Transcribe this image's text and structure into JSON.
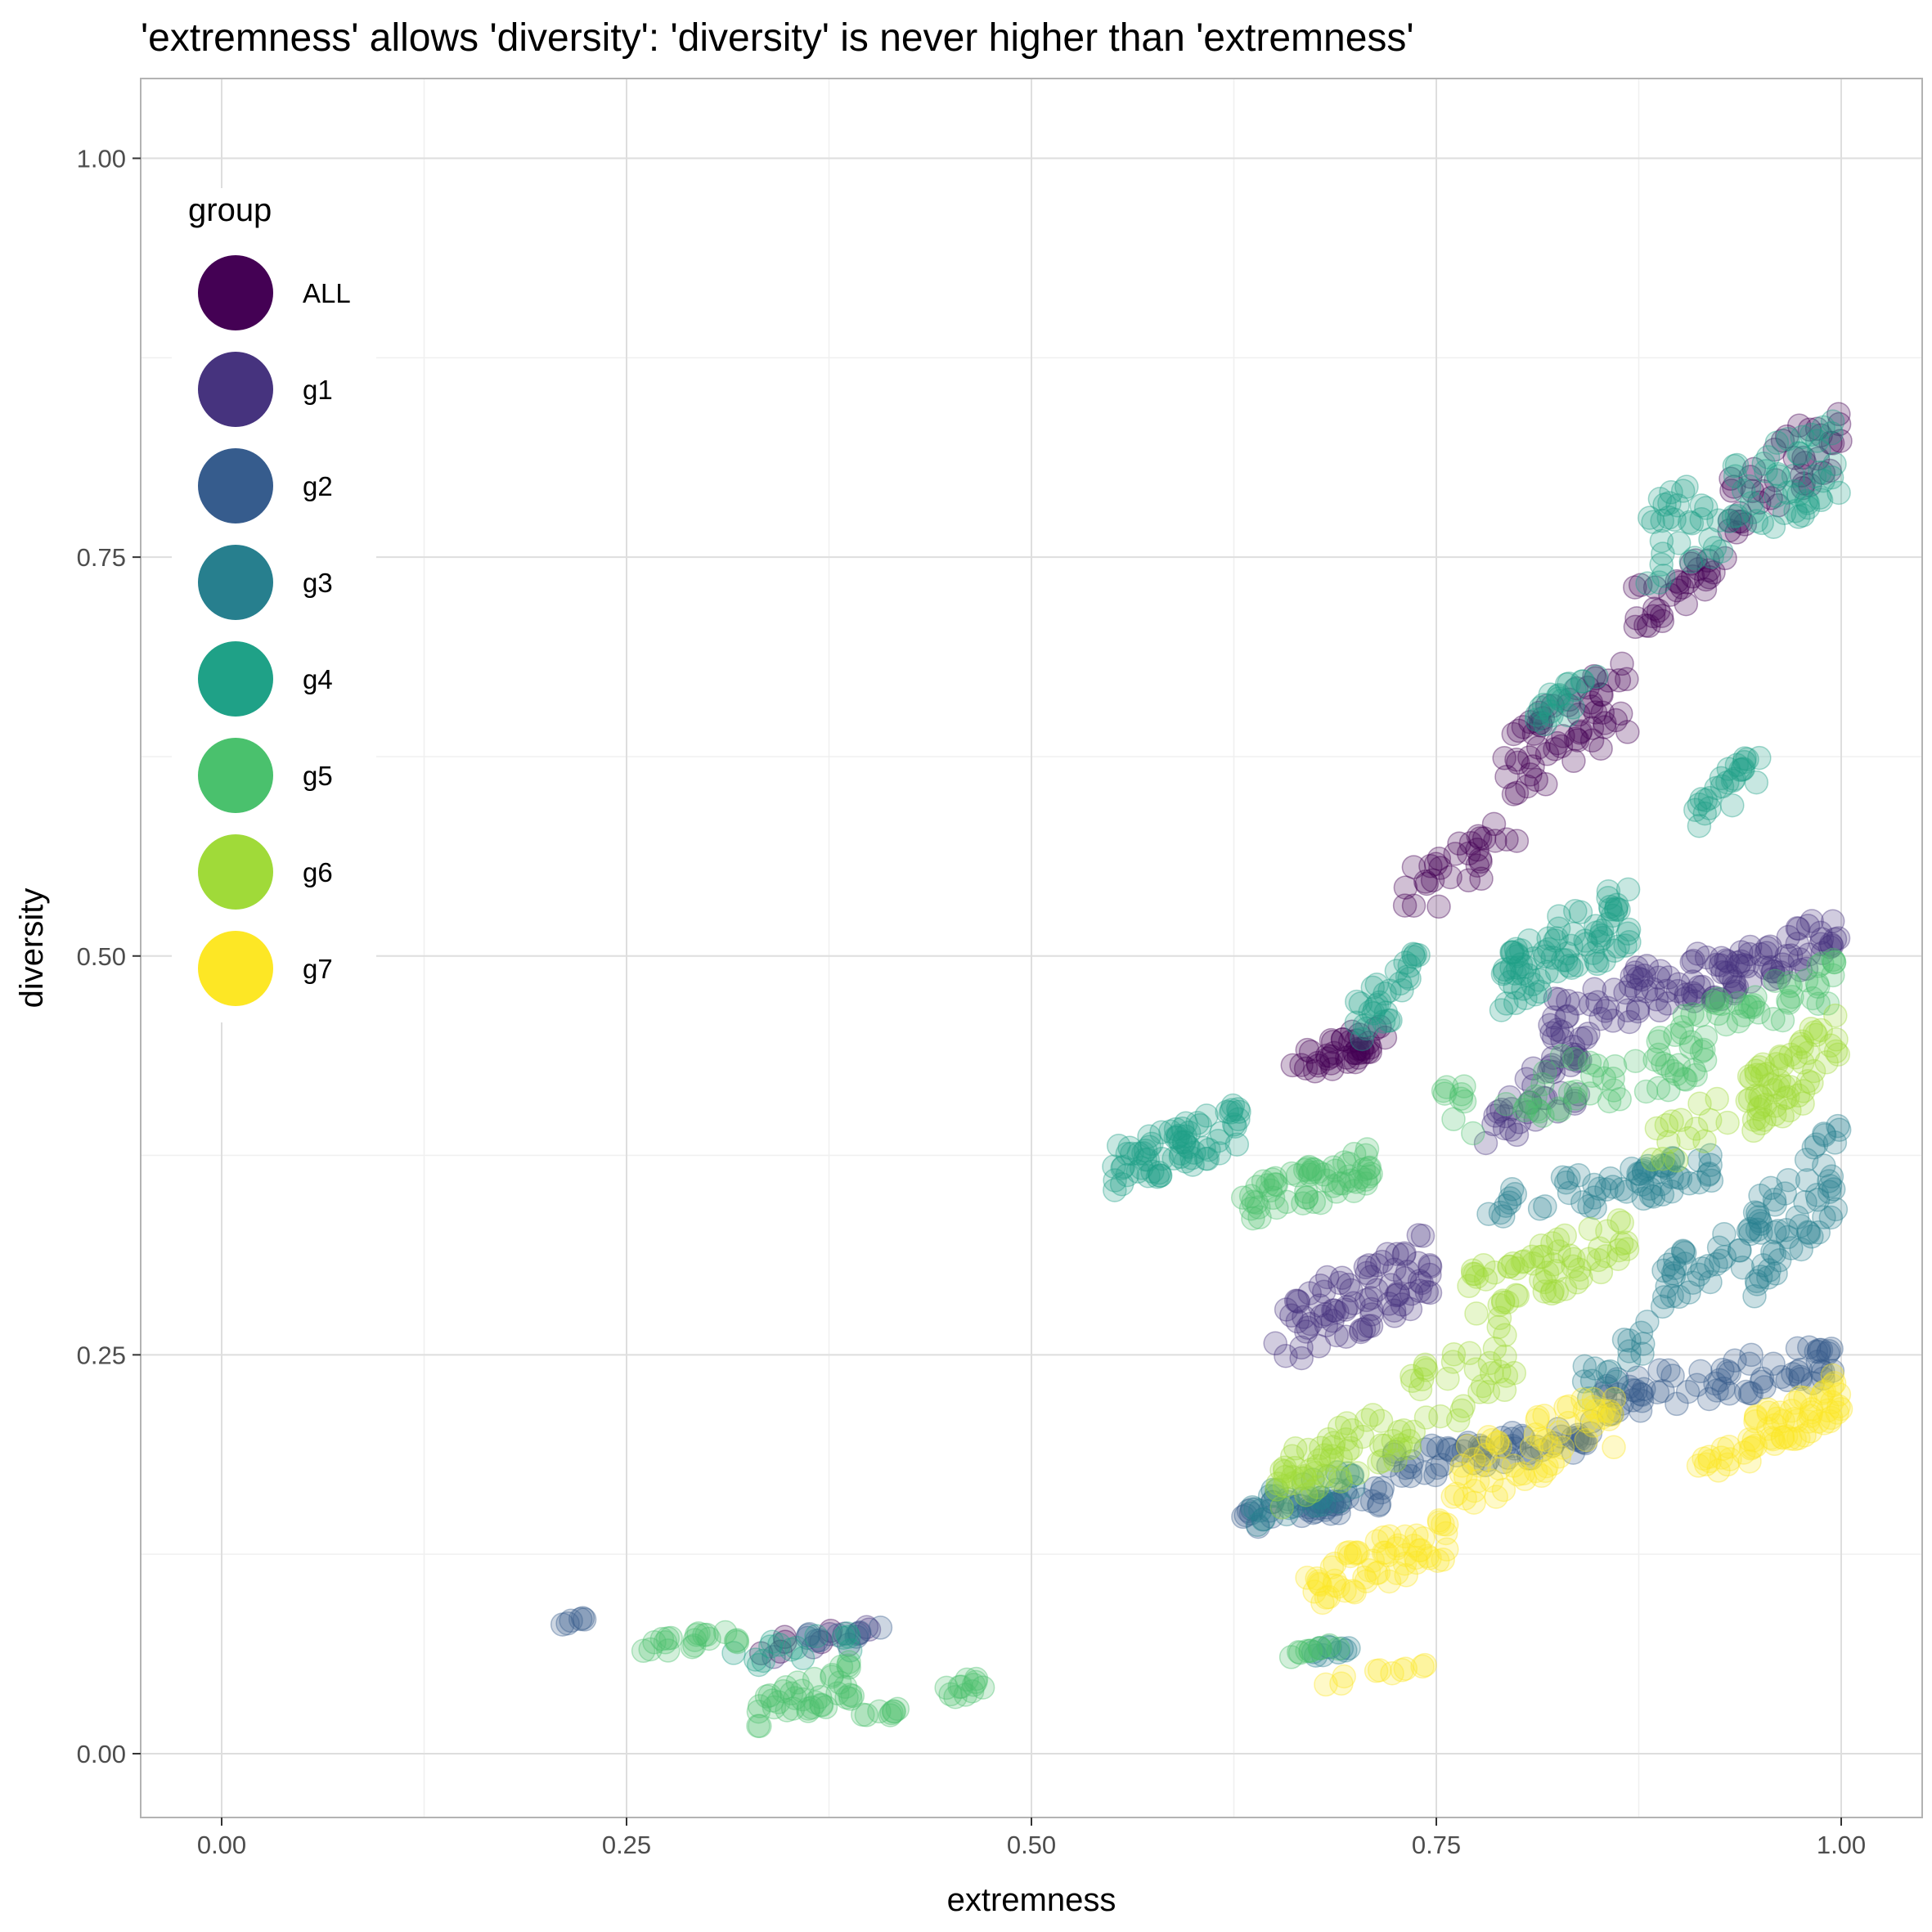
{
  "chart_data": {
    "type": "scatter",
    "title": "'extremness' allows 'diversity': 'diversity' is never higher than 'extremness'",
    "xlabel": "extremness",
    "ylabel": "diversity",
    "xlim": [
      -0.05,
      1.05
    ],
    "ylim": [
      -0.04,
      1.05
    ],
    "x_ticks": [
      "0.00",
      "0.25",
      "0.50",
      "0.75",
      "1.00"
    ],
    "y_ticks": [
      "0.00",
      "0.25",
      "0.50",
      "0.75",
      "1.00"
    ],
    "grid": true,
    "point_opacity": 0.25,
    "legend": {
      "title": "group",
      "position": "top-left-inside"
    },
    "series": [
      {
        "name": "ALL",
        "color": "#440154",
        "clusters": [
          {
            "x0": 0.66,
            "x1": 0.72,
            "y0": 0.42,
            "y1": 0.46,
            "n": 40
          },
          {
            "x0": 0.73,
            "x1": 0.8,
            "y0": 0.52,
            "y1": 0.59,
            "n": 30
          },
          {
            "x0": 0.79,
            "x1": 0.87,
            "y0": 0.59,
            "y1": 0.69,
            "n": 60
          },
          {
            "x0": 0.87,
            "x1": 0.93,
            "y0": 0.7,
            "y1": 0.76,
            "n": 30
          },
          {
            "x0": 0.93,
            "x1": 1.0,
            "y0": 0.76,
            "y1": 0.85,
            "n": 40
          },
          {
            "x0": 0.33,
            "x1": 0.38,
            "y0": 0.06,
            "y1": 0.08,
            "n": 6
          }
        ]
      },
      {
        "name": "g1",
        "color": "#46337e",
        "clusters": [
          {
            "x0": 0.65,
            "x1": 0.75,
            "y0": 0.24,
            "y1": 0.33,
            "n": 80
          },
          {
            "x0": 0.78,
            "x1": 0.84,
            "y0": 0.37,
            "y1": 0.45,
            "n": 40
          },
          {
            "x0": 0.82,
            "x1": 0.92,
            "y0": 0.44,
            "y1": 0.51,
            "n": 60
          },
          {
            "x0": 0.92,
            "x1": 1.0,
            "y0": 0.47,
            "y1": 0.53,
            "n": 60
          },
          {
            "x0": 0.34,
            "x1": 0.4,
            "y0": 0.06,
            "y1": 0.08,
            "n": 8
          }
        ]
      },
      {
        "name": "g2",
        "color": "#365c8d",
        "clusters": [
          {
            "x0": 0.63,
            "x1": 0.72,
            "y0": 0.14,
            "y1": 0.17,
            "n": 40
          },
          {
            "x0": 0.72,
            "x1": 0.85,
            "y0": 0.17,
            "y1": 0.21,
            "n": 60
          },
          {
            "x0": 0.85,
            "x1": 1.0,
            "y0": 0.21,
            "y1": 0.26,
            "n": 70
          },
          {
            "x0": 0.36,
            "x1": 0.41,
            "y0": 0.07,
            "y1": 0.08,
            "n": 10
          },
          {
            "x0": 0.21,
            "x1": 0.24,
            "y0": 0.08,
            "y1": 0.09,
            "n": 6
          }
        ]
      },
      {
        "name": "g3",
        "color": "#277f8e",
        "clusters": [
          {
            "x0": 0.63,
            "x1": 0.7,
            "y0": 0.14,
            "y1": 0.18,
            "n": 30
          },
          {
            "x0": 0.78,
            "x1": 0.92,
            "y0": 0.33,
            "y1": 0.38,
            "n": 60
          },
          {
            "x0": 0.88,
            "x1": 0.94,
            "y0": 0.27,
            "y1": 0.34,
            "n": 30
          },
          {
            "x0": 0.94,
            "x1": 1.0,
            "y0": 0.28,
            "y1": 0.4,
            "n": 60
          },
          {
            "x0": 0.67,
            "x1": 0.7,
            "y0": 0.06,
            "y1": 0.07,
            "n": 10
          },
          {
            "x0": 0.84,
            "x1": 0.88,
            "y0": 0.22,
            "y1": 0.27,
            "n": 15
          }
        ]
      },
      {
        "name": "g4",
        "color": "#1fa187",
        "clusters": [
          {
            "x0": 0.55,
            "x1": 0.63,
            "y0": 0.35,
            "y1": 0.41,
            "n": 70
          },
          {
            "x0": 0.7,
            "x1": 0.74,
            "y0": 0.44,
            "y1": 0.51,
            "n": 30
          },
          {
            "x0": 0.79,
            "x1": 0.87,
            "y0": 0.46,
            "y1": 0.55,
            "n": 80
          },
          {
            "x0": 0.81,
            "x1": 0.85,
            "y0": 0.64,
            "y1": 0.68,
            "n": 20
          },
          {
            "x0": 0.91,
            "x1": 0.95,
            "y0": 0.58,
            "y1": 0.63,
            "n": 25
          },
          {
            "x0": 0.88,
            "x1": 1.0,
            "y0": 0.73,
            "y1": 0.84,
            "n": 80
          },
          {
            "x0": 0.31,
            "x1": 0.39,
            "y0": 0.05,
            "y1": 0.08,
            "n": 15
          }
        ]
      },
      {
        "name": "g5",
        "color": "#4ac16d",
        "clusters": [
          {
            "x0": 0.63,
            "x1": 0.71,
            "y0": 0.33,
            "y1": 0.38,
            "n": 60
          },
          {
            "x0": 0.75,
            "x1": 0.92,
            "y0": 0.38,
            "y1": 0.46,
            "n": 60
          },
          {
            "x0": 0.9,
            "x1": 1.0,
            "y0": 0.44,
            "y1": 0.5,
            "n": 40
          },
          {
            "x0": 0.33,
            "x1": 0.39,
            "y0": 0.01,
            "y1": 0.06,
            "n": 40
          },
          {
            "x0": 0.26,
            "x1": 0.32,
            "y0": 0.06,
            "y1": 0.08,
            "n": 20
          },
          {
            "x0": 0.44,
            "x1": 0.47,
            "y0": 0.03,
            "y1": 0.05,
            "n": 12
          },
          {
            "x0": 0.39,
            "x1": 0.43,
            "y0": 0.02,
            "y1": 0.03,
            "n": 8
          },
          {
            "x0": 0.66,
            "x1": 0.69,
            "y0": 0.06,
            "y1": 0.07,
            "n": 10
          }
        ]
      },
      {
        "name": "g6",
        "color": "#a0da39",
        "clusters": [
          {
            "x0": 0.65,
            "x1": 0.72,
            "y0": 0.15,
            "y1": 0.22,
            "n": 50
          },
          {
            "x0": 0.77,
            "x1": 0.87,
            "y0": 0.27,
            "y1": 0.34,
            "n": 60
          },
          {
            "x0": 0.72,
            "x1": 0.8,
            "y0": 0.18,
            "y1": 0.28,
            "n": 40
          },
          {
            "x0": 0.94,
            "x1": 1.0,
            "y0": 0.38,
            "y1": 0.47,
            "n": 60
          },
          {
            "x0": 0.88,
            "x1": 0.93,
            "y0": 0.36,
            "y1": 0.42,
            "n": 15
          }
        ]
      },
      {
        "name": "g7",
        "color": "#fde725",
        "clusters": [
          {
            "x0": 0.67,
            "x1": 0.76,
            "y0": 0.09,
            "y1": 0.15,
            "n": 60
          },
          {
            "x0": 0.76,
            "x1": 0.86,
            "y0": 0.15,
            "y1": 0.23,
            "n": 60
          },
          {
            "x0": 0.94,
            "x1": 1.0,
            "y0": 0.18,
            "y1": 0.24,
            "n": 50
          },
          {
            "x0": 0.68,
            "x1": 0.75,
            "y0": 0.04,
            "y1": 0.06,
            "n": 10
          },
          {
            "x0": 0.91,
            "x1": 0.95,
            "y0": 0.17,
            "y1": 0.2,
            "n": 15
          }
        ]
      }
    ]
  }
}
